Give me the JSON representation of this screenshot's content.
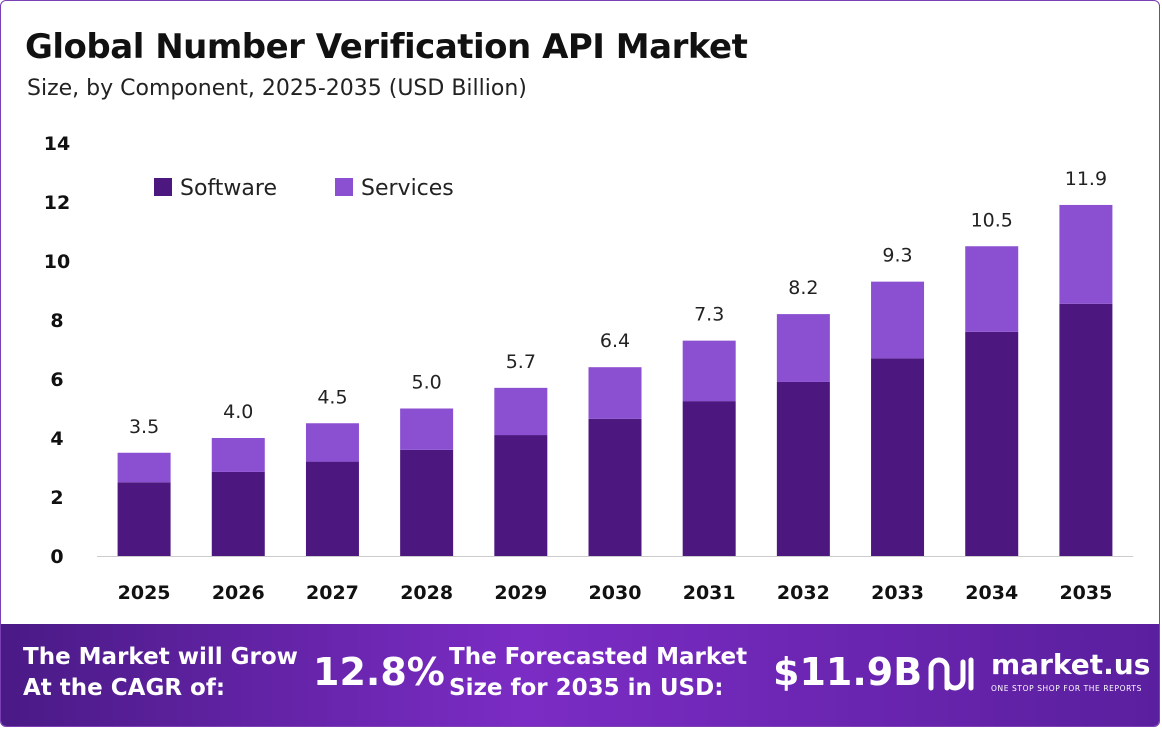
{
  "title": "Global Number Verification API Market",
  "subtitle": "Size, by Component, 2025-2035 (USD Billion)",
  "chart_data": {
    "type": "bar",
    "stacked": true,
    "categories": [
      "2025",
      "2026",
      "2027",
      "2028",
      "2029",
      "2030",
      "2031",
      "2032",
      "2033",
      "2034",
      "2035"
    ],
    "series": [
      {
        "name": "Software",
        "color": "#4c1880",
        "values": [
          2.5,
          2.85,
          3.2,
          3.6,
          4.1,
          4.65,
          5.25,
          5.9,
          6.7,
          7.6,
          8.55
        ]
      },
      {
        "name": "Services",
        "color": "#8b4fd1",
        "values": [
          1.0,
          1.15,
          1.3,
          1.4,
          1.6,
          1.75,
          2.05,
          2.3,
          2.6,
          2.9,
          3.35
        ]
      }
    ],
    "totals": [
      "3.5",
      "4.0",
      "4.5",
      "5.0",
      "5.7",
      "6.4",
      "7.3",
      "8.2",
      "9.3",
      "10.5",
      "11.9"
    ],
    "ylim": [
      0,
      14
    ],
    "yticks": [
      0,
      2,
      4,
      6,
      8,
      10,
      12,
      14
    ],
    "legend_position": "top-left",
    "grid": false
  },
  "footer": {
    "cagr_label_line1": "The Market will Grow",
    "cagr_label_line2": "At the CAGR of:",
    "cagr_value": "12.8%",
    "forecast_label_line1": "The Forecasted Market",
    "forecast_label_line2": "Size for 2035 in USD:",
    "forecast_value": "$11.9B",
    "brand": "market.us",
    "tagline": "ONE STOP SHOP FOR THE REPORTS",
    "logo_icon": "market-us-logo-icon"
  }
}
